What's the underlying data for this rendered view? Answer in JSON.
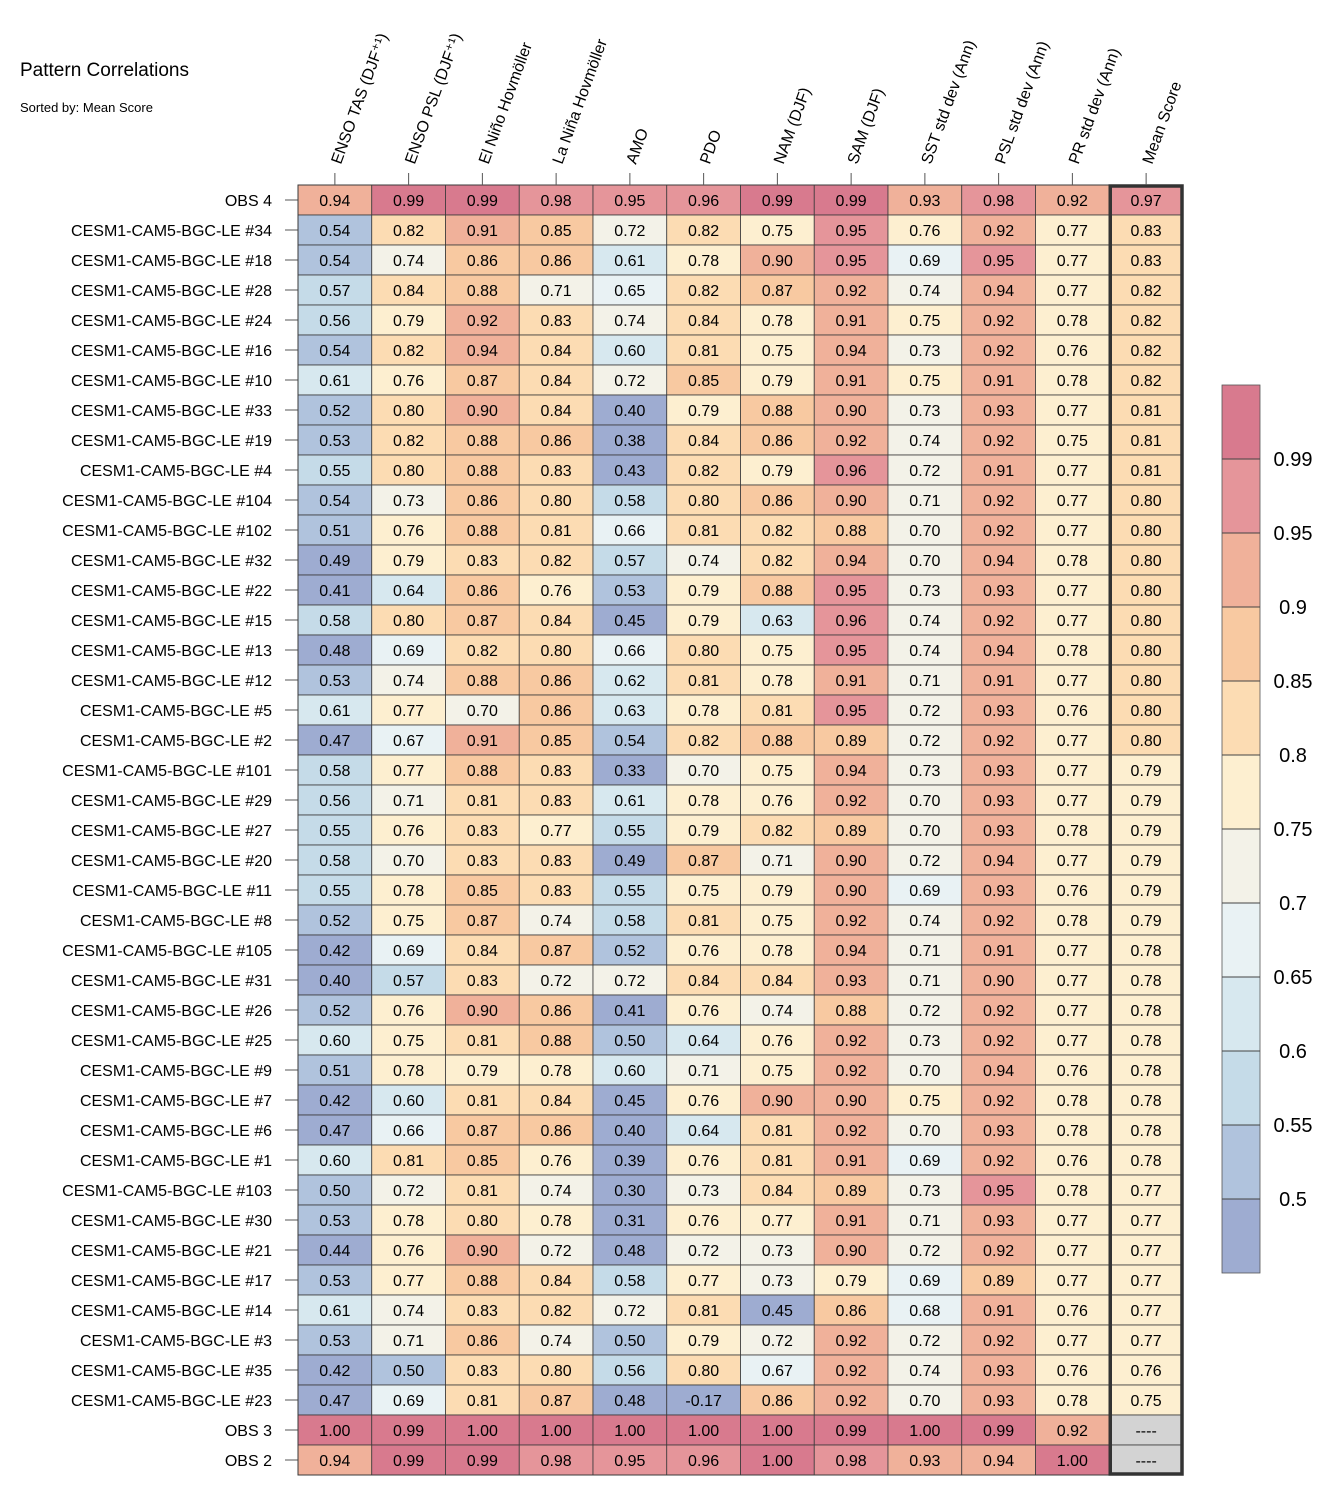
{
  "chart_data": {
    "type": "heatmap",
    "title": "Pattern Correlations",
    "subtitle": "Sorted by: Mean Score",
    "columns": [
      "ENSO TAS (DJF⁺¹)",
      "ENSO PSL (DJF⁺¹)",
      "El Niño Hovmöller",
      "La Niña Hovmöller",
      "AMO",
      "PDO",
      "NAM (DJF)",
      "SAM (DJF)",
      "SST std dev (Ann)",
      "PSL std dev (Ann)",
      "PR std dev (Ann)",
      "Mean Score"
    ],
    "rows": [
      {
        "label": "OBS 4",
        "values": [
          "0.94",
          "0.99",
          "0.99",
          "0.98",
          "0.95",
          "0.96",
          "0.99",
          "0.99",
          "0.93",
          "0.98",
          "0.92",
          "0.97"
        ]
      },
      {
        "label": "CESM1-CAM5-BGC-LE #34",
        "values": [
          "0.54",
          "0.82",
          "0.91",
          "0.85",
          "0.72",
          "0.82",
          "0.75",
          "0.95",
          "0.76",
          "0.92",
          "0.77",
          "0.83"
        ]
      },
      {
        "label": "CESM1-CAM5-BGC-LE #18",
        "values": [
          "0.54",
          "0.74",
          "0.86",
          "0.86",
          "0.61",
          "0.78",
          "0.90",
          "0.95",
          "0.69",
          "0.95",
          "0.77",
          "0.83"
        ]
      },
      {
        "label": "CESM1-CAM5-BGC-LE #28",
        "values": [
          "0.57",
          "0.84",
          "0.88",
          "0.71",
          "0.65",
          "0.82",
          "0.87",
          "0.92",
          "0.74",
          "0.94",
          "0.77",
          "0.82"
        ]
      },
      {
        "label": "CESM1-CAM5-BGC-LE #24",
        "values": [
          "0.56",
          "0.79",
          "0.92",
          "0.83",
          "0.74",
          "0.84",
          "0.78",
          "0.91",
          "0.75",
          "0.92",
          "0.78",
          "0.82"
        ]
      },
      {
        "label": "CESM1-CAM5-BGC-LE #16",
        "values": [
          "0.54",
          "0.82",
          "0.94",
          "0.84",
          "0.60",
          "0.81",
          "0.75",
          "0.94",
          "0.73",
          "0.92",
          "0.76",
          "0.82"
        ]
      },
      {
        "label": "CESM1-CAM5-BGC-LE #10",
        "values": [
          "0.61",
          "0.76",
          "0.87",
          "0.84",
          "0.72",
          "0.85",
          "0.79",
          "0.91",
          "0.75",
          "0.91",
          "0.78",
          "0.82"
        ]
      },
      {
        "label": "CESM1-CAM5-BGC-LE #33",
        "values": [
          "0.52",
          "0.80",
          "0.90",
          "0.84",
          "0.40",
          "0.79",
          "0.88",
          "0.90",
          "0.73",
          "0.93",
          "0.77",
          "0.81"
        ]
      },
      {
        "label": "CESM1-CAM5-BGC-LE #19",
        "values": [
          "0.53",
          "0.82",
          "0.88",
          "0.86",
          "0.38",
          "0.84",
          "0.86",
          "0.92",
          "0.74",
          "0.92",
          "0.75",
          "0.81"
        ]
      },
      {
        "label": "CESM1-CAM5-BGC-LE #4",
        "values": [
          "0.55",
          "0.80",
          "0.88",
          "0.83",
          "0.43",
          "0.82",
          "0.79",
          "0.96",
          "0.72",
          "0.91",
          "0.77",
          "0.81"
        ]
      },
      {
        "label": "CESM1-CAM5-BGC-LE #104",
        "values": [
          "0.54",
          "0.73",
          "0.86",
          "0.80",
          "0.58",
          "0.80",
          "0.86",
          "0.90",
          "0.71",
          "0.92",
          "0.77",
          "0.80"
        ]
      },
      {
        "label": "CESM1-CAM5-BGC-LE #102",
        "values": [
          "0.51",
          "0.76",
          "0.88",
          "0.81",
          "0.66",
          "0.81",
          "0.82",
          "0.88",
          "0.70",
          "0.92",
          "0.77",
          "0.80"
        ]
      },
      {
        "label": "CESM1-CAM5-BGC-LE #32",
        "values": [
          "0.49",
          "0.79",
          "0.83",
          "0.82",
          "0.57",
          "0.74",
          "0.82",
          "0.94",
          "0.70",
          "0.94",
          "0.78",
          "0.80"
        ]
      },
      {
        "label": "CESM1-CAM5-BGC-LE #22",
        "values": [
          "0.41",
          "0.64",
          "0.86",
          "0.76",
          "0.53",
          "0.79",
          "0.88",
          "0.95",
          "0.73",
          "0.93",
          "0.77",
          "0.80"
        ]
      },
      {
        "label": "CESM1-CAM5-BGC-LE #15",
        "values": [
          "0.58",
          "0.80",
          "0.87",
          "0.84",
          "0.45",
          "0.79",
          "0.63",
          "0.96",
          "0.74",
          "0.92",
          "0.77",
          "0.80"
        ]
      },
      {
        "label": "CESM1-CAM5-BGC-LE #13",
        "values": [
          "0.48",
          "0.69",
          "0.82",
          "0.80",
          "0.66",
          "0.80",
          "0.75",
          "0.95",
          "0.74",
          "0.94",
          "0.78",
          "0.80"
        ]
      },
      {
        "label": "CESM1-CAM5-BGC-LE #12",
        "values": [
          "0.53",
          "0.74",
          "0.88",
          "0.86",
          "0.62",
          "0.81",
          "0.78",
          "0.91",
          "0.71",
          "0.91",
          "0.77",
          "0.80"
        ]
      },
      {
        "label": "CESM1-CAM5-BGC-LE #5",
        "values": [
          "0.61",
          "0.77",
          "0.70",
          "0.86",
          "0.63",
          "0.78",
          "0.81",
          "0.95",
          "0.72",
          "0.93",
          "0.76",
          "0.80"
        ]
      },
      {
        "label": "CESM1-CAM5-BGC-LE #2",
        "values": [
          "0.47",
          "0.67",
          "0.91",
          "0.85",
          "0.54",
          "0.82",
          "0.88",
          "0.89",
          "0.72",
          "0.92",
          "0.77",
          "0.80"
        ]
      },
      {
        "label": "CESM1-CAM5-BGC-LE #101",
        "values": [
          "0.58",
          "0.77",
          "0.88",
          "0.83",
          "0.33",
          "0.70",
          "0.75",
          "0.94",
          "0.73",
          "0.93",
          "0.77",
          "0.79"
        ]
      },
      {
        "label": "CESM1-CAM5-BGC-LE #29",
        "values": [
          "0.56",
          "0.71",
          "0.81",
          "0.83",
          "0.61",
          "0.78",
          "0.76",
          "0.92",
          "0.70",
          "0.93",
          "0.77",
          "0.79"
        ]
      },
      {
        "label": "CESM1-CAM5-BGC-LE #27",
        "values": [
          "0.55",
          "0.76",
          "0.83",
          "0.77",
          "0.55",
          "0.79",
          "0.82",
          "0.89",
          "0.70",
          "0.93",
          "0.78",
          "0.79"
        ]
      },
      {
        "label": "CESM1-CAM5-BGC-LE #20",
        "values": [
          "0.58",
          "0.70",
          "0.83",
          "0.83",
          "0.49",
          "0.87",
          "0.71",
          "0.90",
          "0.72",
          "0.94",
          "0.77",
          "0.79"
        ]
      },
      {
        "label": "CESM1-CAM5-BGC-LE #11",
        "values": [
          "0.55",
          "0.78",
          "0.85",
          "0.83",
          "0.55",
          "0.75",
          "0.79",
          "0.90",
          "0.69",
          "0.93",
          "0.76",
          "0.79"
        ]
      },
      {
        "label": "CESM1-CAM5-BGC-LE #8",
        "values": [
          "0.52",
          "0.75",
          "0.87",
          "0.74",
          "0.58",
          "0.81",
          "0.75",
          "0.92",
          "0.74",
          "0.92",
          "0.78",
          "0.79"
        ]
      },
      {
        "label": "CESM1-CAM5-BGC-LE #105",
        "values": [
          "0.42",
          "0.69",
          "0.84",
          "0.87",
          "0.52",
          "0.76",
          "0.78",
          "0.94",
          "0.71",
          "0.91",
          "0.77",
          "0.78"
        ]
      },
      {
        "label": "CESM1-CAM5-BGC-LE #31",
        "values": [
          "0.40",
          "0.57",
          "0.83",
          "0.72",
          "0.72",
          "0.84",
          "0.84",
          "0.93",
          "0.71",
          "0.90",
          "0.77",
          "0.78"
        ]
      },
      {
        "label": "CESM1-CAM5-BGC-LE #26",
        "values": [
          "0.52",
          "0.76",
          "0.90",
          "0.86",
          "0.41",
          "0.76",
          "0.74",
          "0.88",
          "0.72",
          "0.92",
          "0.77",
          "0.78"
        ]
      },
      {
        "label": "CESM1-CAM5-BGC-LE #25",
        "values": [
          "0.60",
          "0.75",
          "0.81",
          "0.88",
          "0.50",
          "0.64",
          "0.76",
          "0.92",
          "0.73",
          "0.92",
          "0.77",
          "0.78"
        ]
      },
      {
        "label": "CESM1-CAM5-BGC-LE #9",
        "values": [
          "0.51",
          "0.78",
          "0.79",
          "0.78",
          "0.60",
          "0.71",
          "0.75",
          "0.92",
          "0.70",
          "0.94",
          "0.76",
          "0.78"
        ]
      },
      {
        "label": "CESM1-CAM5-BGC-LE #7",
        "values": [
          "0.42",
          "0.60",
          "0.81",
          "0.84",
          "0.45",
          "0.76",
          "0.90",
          "0.90",
          "0.75",
          "0.92",
          "0.78",
          "0.78"
        ]
      },
      {
        "label": "CESM1-CAM5-BGC-LE #6",
        "values": [
          "0.47",
          "0.66",
          "0.87",
          "0.86",
          "0.40",
          "0.64",
          "0.81",
          "0.92",
          "0.70",
          "0.93",
          "0.78",
          "0.78"
        ]
      },
      {
        "label": "CESM1-CAM5-BGC-LE #1",
        "values": [
          "0.60",
          "0.81",
          "0.85",
          "0.76",
          "0.39",
          "0.76",
          "0.81",
          "0.91",
          "0.69",
          "0.92",
          "0.76",
          "0.78"
        ]
      },
      {
        "label": "CESM1-CAM5-BGC-LE #103",
        "values": [
          "0.50",
          "0.72",
          "0.81",
          "0.74",
          "0.30",
          "0.73",
          "0.84",
          "0.89",
          "0.73",
          "0.95",
          "0.78",
          "0.77"
        ]
      },
      {
        "label": "CESM1-CAM5-BGC-LE #30",
        "values": [
          "0.53",
          "0.78",
          "0.80",
          "0.78",
          "0.31",
          "0.76",
          "0.77",
          "0.91",
          "0.71",
          "0.93",
          "0.77",
          "0.77"
        ]
      },
      {
        "label": "CESM1-CAM5-BGC-LE #21",
        "values": [
          "0.44",
          "0.76",
          "0.90",
          "0.72",
          "0.48",
          "0.72",
          "0.73",
          "0.90",
          "0.72",
          "0.92",
          "0.77",
          "0.77"
        ]
      },
      {
        "label": "CESM1-CAM5-BGC-LE #17",
        "values": [
          "0.53",
          "0.77",
          "0.88",
          "0.84",
          "0.58",
          "0.77",
          "0.73",
          "0.79",
          "0.69",
          "0.89",
          "0.77",
          "0.77"
        ]
      },
      {
        "label": "CESM1-CAM5-BGC-LE #14",
        "values": [
          "0.61",
          "0.74",
          "0.83",
          "0.82",
          "0.72",
          "0.81",
          "0.45",
          "0.86",
          "0.68",
          "0.91",
          "0.76",
          "0.77"
        ]
      },
      {
        "label": "CESM1-CAM5-BGC-LE #3",
        "values": [
          "0.53",
          "0.71",
          "0.86",
          "0.74",
          "0.50",
          "0.79",
          "0.72",
          "0.92",
          "0.72",
          "0.92",
          "0.77",
          "0.77"
        ]
      },
      {
        "label": "CESM1-CAM5-BGC-LE #35",
        "values": [
          "0.42",
          "0.50",
          "0.83",
          "0.80",
          "0.56",
          "0.80",
          "0.67",
          "0.92",
          "0.74",
          "0.93",
          "0.76",
          "0.76"
        ]
      },
      {
        "label": "CESM1-CAM5-BGC-LE #23",
        "values": [
          "0.47",
          "0.69",
          "0.81",
          "0.87",
          "0.48",
          "-0.17",
          "0.86",
          "0.92",
          "0.70",
          "0.93",
          "0.78",
          "0.75"
        ]
      },
      {
        "label": "OBS 3",
        "values": [
          "1.00",
          "0.99",
          "1.00",
          "1.00",
          "1.00",
          "1.00",
          "1.00",
          "0.99",
          "1.00",
          "0.99",
          "0.92",
          "----"
        ]
      },
      {
        "label": "OBS 2",
        "values": [
          "0.94",
          "0.99",
          "0.99",
          "0.98",
          "0.95",
          "0.96",
          "1.00",
          "0.98",
          "0.93",
          "0.94",
          "1.00",
          "----"
        ]
      }
    ],
    "colorbar": {
      "ticks": [
        "0.99",
        "0.95",
        "0.9",
        "0.85",
        "0.8",
        "0.75",
        "0.7",
        "0.65",
        "0.6",
        "0.55",
        "0.5"
      ],
      "levels": [
        0.5,
        0.55,
        0.6,
        0.65,
        0.7,
        0.75,
        0.8,
        0.85,
        0.9,
        0.95,
        0.99
      ],
      "colors": [
        "#9eacd1",
        "#b0c3dd",
        "#c5dbe8",
        "#d7e8ef",
        "#e9f2f4",
        "#f3f2e8",
        "#fdefd0",
        "#fcdcb3",
        "#f8c9a1",
        "#f0b19a",
        "#e5959a",
        "#d87a8e"
      ],
      "missing_color": "#d3d3d3"
    }
  }
}
